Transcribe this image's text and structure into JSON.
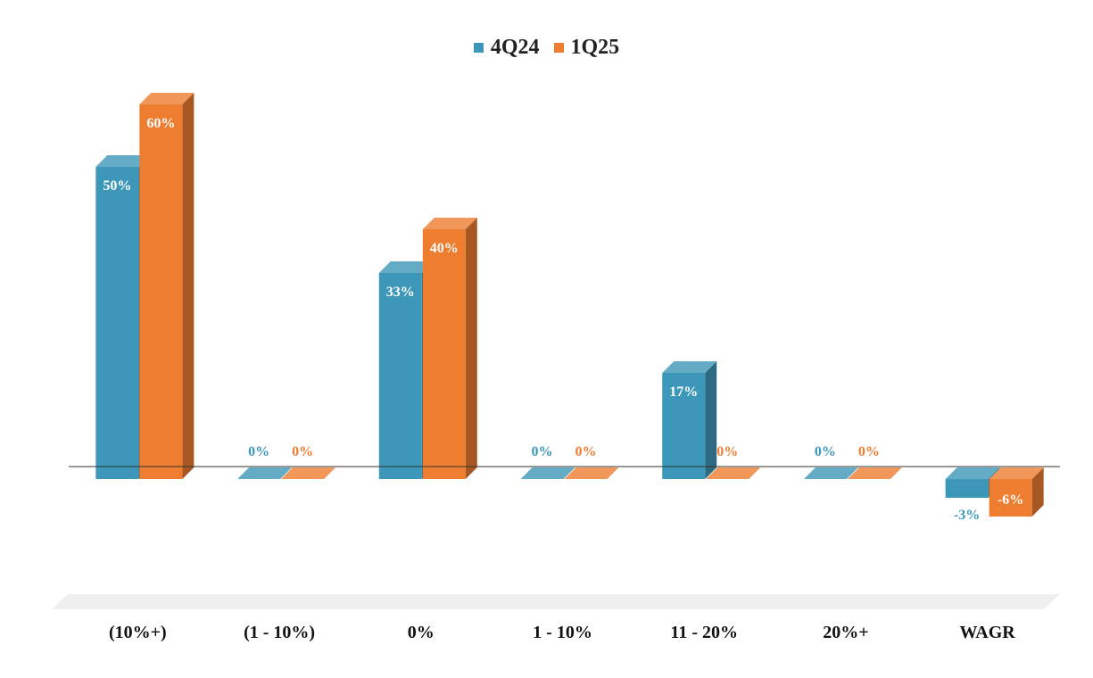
{
  "chart_data": {
    "type": "bar",
    "title": "",
    "xlabel": "",
    "ylabel": "",
    "categories": [
      "(10%+)",
      "(1 - 10%)",
      "0%",
      "1 - 10%",
      "11 - 20%",
      "20%+",
      "WAGR"
    ],
    "series": [
      {
        "name": "4Q24",
        "color": "#3d97b8",
        "values": [
          50,
          0,
          33,
          0,
          17,
          0,
          -3
        ],
        "labels": [
          "50%",
          "0%",
          "33%",
          "0%",
          "17%",
          "0%",
          "-3%"
        ]
      },
      {
        "name": "1Q25",
        "color": "#ee7d30",
        "values": [
          60,
          0,
          40,
          0,
          0,
          0,
          -6
        ],
        "labels": [
          "60%",
          "0%",
          "40%",
          "0%",
          "0%",
          "0%",
          "-6%"
        ]
      }
    ],
    "ylim": [
      -20,
      65
    ],
    "grid": false,
    "legend": "top-center",
    "style": "3d-column"
  }
}
